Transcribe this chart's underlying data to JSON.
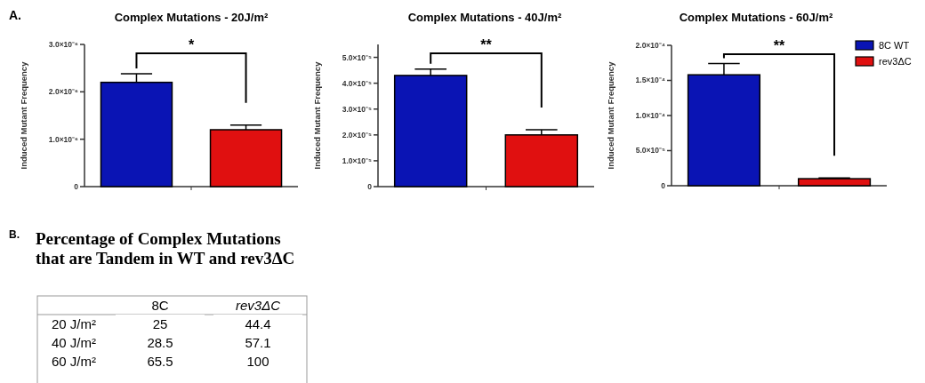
{
  "chart_data": [
    {
      "type": "bar",
      "title": "Complex Mutations - 20J/m²",
      "ylabel": "Induced Mutant Frequency",
      "categories": [
        null
      ],
      "series": [
        {
          "color": "#0a14b4",
          "values": [
            2.2e-06
          ],
          "errors": [
            1.8e-07
          ]
        },
        {
          "color": "#e01010",
          "values": [
            1.2e-06
          ],
          "errors": [
            1e-07
          ]
        }
      ],
      "ylim": [
        0,
        3e-06
      ],
      "yticks": [
        {
          "value": 0,
          "label": "0"
        },
        {
          "value": 1e-06,
          "label": "1.0×10⁻⁶"
        },
        {
          "value": 2e-06,
          "label": "2.0×10⁻⁶"
        },
        {
          "value": 3e-06,
          "label": "3.0×10⁻⁶"
        }
      ],
      "annotations": [
        "A.",
        "*"
      ],
      "legend": false,
      "grid": false
    },
    {
      "type": "bar",
      "title": "Complex Mutations - 40J/m²",
      "ylabel": "Induced Mutant Frequency",
      "categories": [
        null
      ],
      "series": [
        {
          "color": "#0a14b4",
          "values": [
            4.3e-05
          ],
          "errors": [
            2.5e-06
          ]
        },
        {
          "color": "#e01010",
          "values": [
            2e-05
          ],
          "errors": [
            2e-06
          ]
        }
      ],
      "ylim": [
        0,
        5.5e-05
      ],
      "yticks": [
        {
          "value": 0,
          "label": "0"
        },
        {
          "value": 1e-05,
          "label": "1.0×10⁻⁵"
        },
        {
          "value": 2e-05,
          "label": "2.0×10⁻⁵"
        },
        {
          "value": 3e-05,
          "label": "3.0×10⁻⁵"
        },
        {
          "value": 4e-05,
          "label": "4.0×10⁻⁵"
        },
        {
          "value": 5e-05,
          "label": "5.0×10⁻⁵"
        }
      ],
      "annotations": [
        "**"
      ],
      "legend": false,
      "grid": false
    },
    {
      "type": "bar",
      "title": "Complex Mutations - 60J/m²",
      "ylabel": "Induced Mutant Frequency",
      "categories": [
        null
      ],
      "series": [
        {
          "name": "8C WT",
          "color": "#0a14b4",
          "values": [
            0.000158
          ],
          "errors": [
            1.6e-05
          ]
        },
        {
          "name": "rev3ΔC",
          "color": "#e01010",
          "values": [
            1e-05
          ],
          "errors": [
            1e-06
          ]
        }
      ],
      "ylim": [
        0,
        0.0002
      ],
      "yticks": [
        {
          "value": 0,
          "label": "0"
        },
        {
          "value": 5e-05,
          "label": "5.0×10⁻⁵"
        },
        {
          "value": 0.0001,
          "label": "1.0×10⁻⁴"
        },
        {
          "value": 0.00015,
          "label": "1.5×10⁻⁴"
        },
        {
          "value": 0.0002,
          "label": "2.0×10⁻⁴"
        }
      ],
      "annotations": [
        "**"
      ],
      "legend": "right",
      "grid": false
    },
    {
      "type": "heatmap",
      "data_labels": true,
      "title": "Percentage of Complex Mutations that are Tandem in WT and rev3ΔC",
      "annotations": [
        "B."
      ],
      "categories": [
        "8C",
        "rev3ΔC"
      ],
      "y_categories": [
        "20 J/m²",
        "40 J/m²",
        "60 J/m²"
      ],
      "cells": [
        [
          25,
          44.4
        ],
        [
          28.5,
          57.1
        ],
        [
          65.5,
          100
        ]
      ]
    }
  ]
}
